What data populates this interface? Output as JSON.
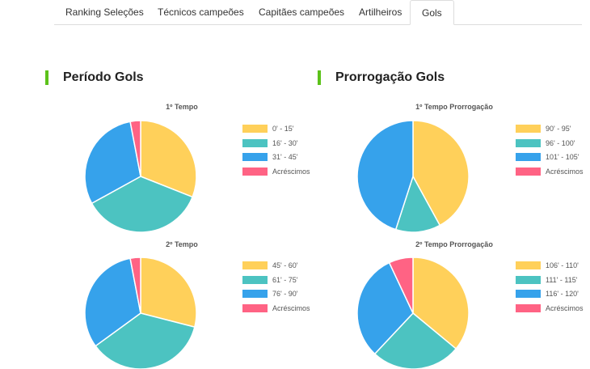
{
  "tabs": [
    {
      "label": "Ranking Seleções",
      "active": false
    },
    {
      "label": "Técnicos campeões",
      "active": false
    },
    {
      "label": "Capitães campeões",
      "active": false
    },
    {
      "label": "Artilheiros",
      "active": false
    },
    {
      "label": "Gols",
      "active": true
    }
  ],
  "sections": {
    "periodo": {
      "title": "Período Gols"
    },
    "prorrogacao": {
      "title": "Prorrogação Gols"
    }
  },
  "colors": {
    "accent": "#5cc21a",
    "yellow": "#ffd05a",
    "teal": "#4cc3c1",
    "blue": "#36a2eb",
    "pink": "#ff6384"
  },
  "chart_data": [
    {
      "type": "pie",
      "title": "1º Tempo",
      "categories": [
        "0' - 15'",
        "16' - 30'",
        "31' - 45'",
        "Acréscimos"
      ],
      "values": [
        31,
        36,
        30,
        3
      ],
      "colors": [
        "#ffd05a",
        "#4cc3c1",
        "#36a2eb",
        "#ff6384"
      ]
    },
    {
      "type": "pie",
      "title": "1º Tempo Prorrogação",
      "categories": [
        "90' - 95'",
        "96' - 100'",
        "101' - 105'",
        "Acréscimos"
      ],
      "values": [
        42,
        13,
        45,
        0
      ],
      "colors": [
        "#ffd05a",
        "#4cc3c1",
        "#36a2eb",
        "#ff6384"
      ]
    },
    {
      "type": "pie",
      "title": "2º Tempo",
      "categories": [
        "45' - 60'",
        "61' - 75'",
        "76' - 90'",
        "Acréscimos"
      ],
      "values": [
        29,
        36,
        32,
        3
      ],
      "colors": [
        "#ffd05a",
        "#4cc3c1",
        "#36a2eb",
        "#ff6384"
      ]
    },
    {
      "type": "pie",
      "title": "2º Tempo Prorrogação",
      "categories": [
        "106' - 110'",
        "111' - 115'",
        "116' - 120'",
        "Acréscimos"
      ],
      "values": [
        36,
        26,
        31,
        7
      ],
      "colors": [
        "#ffd05a",
        "#4cc3c1",
        "#36a2eb",
        "#ff6384"
      ]
    }
  ]
}
